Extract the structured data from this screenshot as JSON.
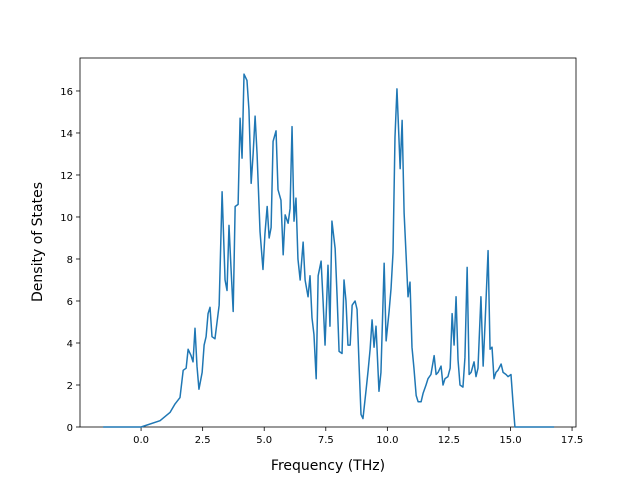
{
  "chart_data": {
    "type": "line",
    "xlabel": "Frequency (THz)",
    "ylabel": "Density of States",
    "x": [
      -1.54,
      0,
      0.77,
      1.18,
      1.38,
      1.58,
      1.71,
      1.83,
      1.91,
      2.03,
      2.11,
      2.19,
      2.27,
      2.35,
      2.48,
      2.56,
      2.64,
      2.72,
      2.8,
      2.88,
      3.0,
      3.17,
      3.29,
      3.41,
      3.49,
      3.57,
      3.65,
      3.74,
      3.82,
      3.94,
      4.02,
      4.1,
      4.18,
      4.3,
      4.38,
      4.47,
      4.55,
      4.63,
      4.71,
      4.83,
      4.95,
      5.03,
      5.12,
      5.2,
      5.28,
      5.36,
      5.48,
      5.56,
      5.68,
      5.77,
      5.85,
      5.97,
      6.05,
      6.13,
      6.21,
      6.29,
      6.37,
      6.46,
      6.58,
      6.66,
      6.78,
      6.86,
      6.94,
      7.02,
      7.11,
      7.19,
      7.31,
      7.39,
      7.47,
      7.59,
      7.67,
      7.75,
      7.88,
      7.96,
      8.04,
      8.16,
      8.24,
      8.32,
      8.4,
      8.49,
      8.57,
      8.69,
      8.77,
      8.85,
      8.93,
      9.01,
      9.14,
      9.22,
      9.3,
      9.38,
      9.46,
      9.54,
      9.66,
      9.74,
      9.87,
      9.95,
      10.07,
      10.15,
      10.23,
      10.31,
      10.39,
      10.52,
      10.6,
      10.68,
      10.76,
      10.84,
      10.92,
      11.0,
      11.08,
      11.17,
      11.25,
      11.37,
      11.45,
      11.57,
      11.65,
      11.77,
      11.9,
      11.98,
      12.06,
      12.18,
      12.26,
      12.34,
      12.46,
      12.55,
      12.63,
      12.71,
      12.79,
      12.87,
      12.95,
      13.07,
      13.15,
      13.24,
      13.32,
      13.4,
      13.52,
      13.6,
      13.68,
      13.8,
      13.89,
      13.97,
      14.09,
      14.17,
      14.25,
      14.33,
      14.41,
      14.49,
      14.62,
      14.7,
      14.82,
      14.9,
      15.02,
      15.1,
      15.18,
      16.77
    ],
    "series": [
      {
        "color": "#1f77b4",
        "values": [
          0,
          0,
          0.3,
          0.7,
          1.1,
          1.4,
          2.7,
          2.8,
          3.7,
          3.4,
          3.1,
          4.7,
          2.9,
          1.8,
          2.6,
          3.9,
          4.3,
          5.4,
          5.7,
          4.3,
          4.2,
          5.8,
          11.2,
          7.0,
          6.5,
          9.6,
          7.6,
          5.5,
          10.5,
          10.6,
          14.7,
          12.8,
          16.8,
          16.5,
          15.1,
          11.6,
          13.0,
          14.8,
          13.0,
          9.3,
          7.5,
          9.2,
          10.5,
          9.0,
          9.5,
          13.6,
          14.1,
          11.3,
          10.8,
          8.2,
          10.1,
          9.7,
          10.4,
          14.3,
          9.8,
          10.9,
          8.0,
          7.0,
          8.8,
          7.0,
          6.2,
          7.2,
          5.2,
          4.4,
          2.3,
          7.2,
          7.9,
          6.0,
          3.9,
          7.7,
          4.8,
          9.8,
          8.5,
          6.2,
          3.6,
          3.5,
          7.0,
          6.0,
          3.9,
          3.9,
          5.8,
          6.0,
          5.6,
          3.0,
          0.6,
          0.4,
          1.8,
          2.7,
          3.7,
          5.1,
          3.8,
          4.8,
          1.7,
          2.6,
          7.8,
          4.1,
          5.5,
          6.6,
          8.3,
          13.8,
          16.1,
          12.3,
          14.6,
          10.2,
          8.2,
          6.2,
          6.9,
          3.8,
          2.8,
          1.5,
          1.2,
          1.2,
          1.6,
          2.0,
          2.3,
          2.5,
          3.4,
          2.5,
          2.6,
          2.9,
          2.0,
          2.3,
          2.4,
          2.8,
          5.4,
          3.9,
          6.2,
          3.2,
          2.0,
          1.9,
          3.3,
          7.6,
          2.5,
          2.6,
          3.1,
          2.4,
          2.8,
          6.2,
          2.9,
          5.0,
          8.4,
          3.7,
          3.8,
          2.3,
          2.6,
          2.7,
          3.0,
          2.6,
          2.5,
          2.4,
          2.5,
          1.2,
          0,
          0
        ]
      }
    ],
    "xlim": [
      -2.48,
      17.66
    ],
    "ylim": [
      0,
      17.57
    ],
    "xticks": [
      {
        "value": 0,
        "label": "0.0"
      },
      2.5,
      {
        "value": 5,
        "label": "5.0"
      },
      7.5,
      {
        "value": 10,
        "label": "10.0"
      },
      12.5,
      {
        "value": 15,
        "label": "15.0"
      },
      17.5
    ],
    "yticks": [
      0,
      2,
      4,
      6,
      8,
      10,
      12,
      14,
      16
    ]
  }
}
